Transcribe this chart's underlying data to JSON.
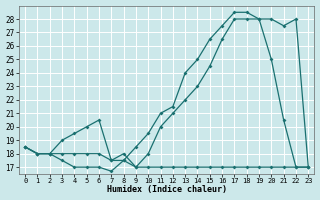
{
  "xlabel": "Humidex (Indice chaleur)",
  "xlim": [
    0,
    23
  ],
  "ylim": [
    16.5,
    29.0
  ],
  "yticks": [
    17,
    18,
    19,
    20,
    21,
    22,
    23,
    24,
    25,
    26,
    27,
    28
  ],
  "xticks": [
    0,
    1,
    2,
    3,
    4,
    5,
    6,
    7,
    8,
    9,
    10,
    11,
    12,
    13,
    14,
    15,
    16,
    17,
    18,
    19,
    20,
    21,
    22,
    23
  ],
  "bg_color": "#cce8ea",
  "grid_color": "#ffffff",
  "line_color": "#1a7070",
  "line1_y": [
    18.5,
    18.0,
    18.0,
    17.5,
    17.0,
    17.0,
    17.0,
    16.7,
    17.5,
    18.5,
    19.5,
    21.0,
    21.5,
    24.0,
    25.0,
    26.5,
    27.5,
    28.5,
    28.5,
    28.0,
    25.0,
    20.5,
    17.0,
    17.0
  ],
  "line2_y": [
    18.5,
    18.0,
    18.0,
    19.0,
    19.5,
    20.0,
    20.5,
    17.5,
    18.0,
    17.0,
    18.0,
    20.0,
    21.0,
    22.0,
    23.0,
    24.5,
    26.5,
    28.0,
    28.0,
    28.0,
    28.0,
    27.5,
    28.0,
    17.0
  ],
  "line3_y": [
    18.5,
    18.0,
    18.0,
    18.0,
    18.0,
    18.0,
    18.0,
    17.5,
    17.5,
    17.0,
    17.0,
    17.0,
    17.0,
    17.0,
    17.0,
    17.0,
    17.0,
    17.0,
    17.0,
    17.0,
    17.0,
    17.0,
    17.0,
    17.0
  ]
}
